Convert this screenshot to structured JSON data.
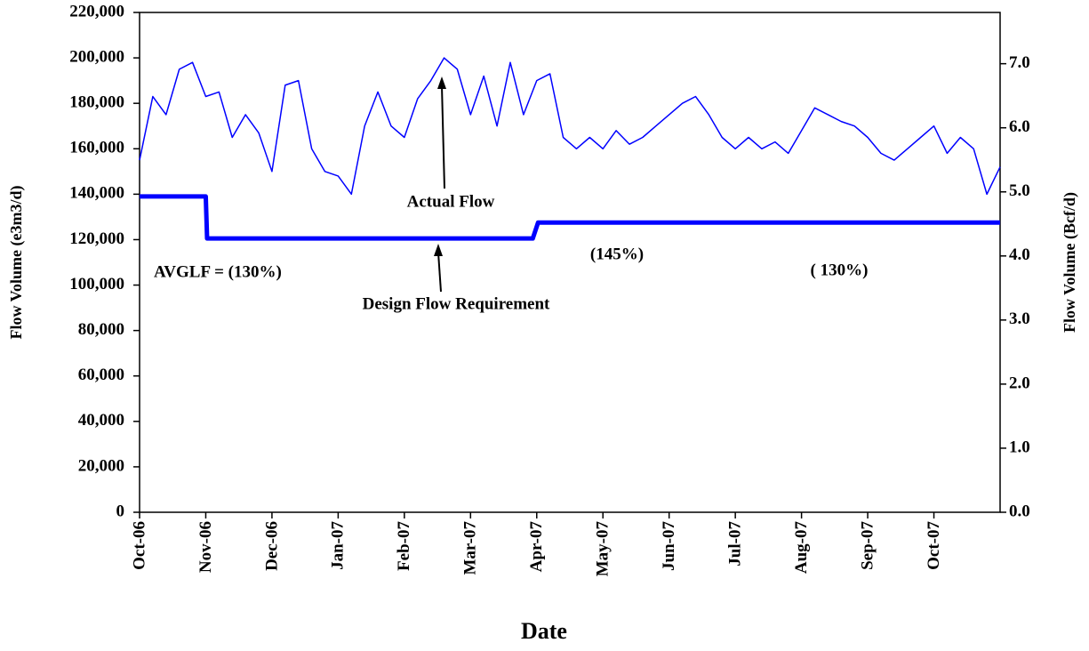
{
  "chart_data": {
    "type": "line",
    "xlabel": "Date",
    "ylabel": "Flow Volume  (e3m3/d)",
    "y2label": "Flow Volume  (Bcf/d)",
    "xlim": [
      0,
      13
    ],
    "xticks": [
      {
        "value": 0,
        "label": "Oct-06"
      },
      {
        "value": 1,
        "label": "Nov-06"
      },
      {
        "value": 2,
        "label": "Dec-06"
      },
      {
        "value": 3,
        "label": "Jan-07"
      },
      {
        "value": 4,
        "label": "Feb-07"
      },
      {
        "value": 5,
        "label": "Mar-07"
      },
      {
        "value": 6,
        "label": "Apr-07"
      },
      {
        "value": 7,
        "label": "May-07"
      },
      {
        "value": 8,
        "label": "Jun-07"
      },
      {
        "value": 9,
        "label": "Jul-07"
      },
      {
        "value": 10,
        "label": "Aug-07"
      },
      {
        "value": 11,
        "label": "Sep-07"
      },
      {
        "value": 12,
        "label": "Oct-07"
      }
    ],
    "ylim": [
      0,
      220000
    ],
    "yticks": [
      0,
      {
        "value": 20000,
        "label": "20,000"
      },
      {
        "value": 40000,
        "label": "40,000"
      },
      {
        "value": 60000,
        "label": "60,000"
      },
      {
        "value": 80000,
        "label": "80,000"
      },
      {
        "value": 100000,
        "label": "100,000"
      },
      {
        "value": 120000,
        "label": "120,000"
      },
      {
        "value": 140000,
        "label": "140,000"
      },
      {
        "value": 160000,
        "label": "160,000"
      },
      {
        "value": 180000,
        "label": "180,000"
      },
      {
        "value": 200000,
        "label": "200,000"
      },
      {
        "value": 220000,
        "label": "220,000"
      }
    ],
    "y2lim": [
      0,
      7.8
    ],
    "y2ticks": [
      {
        "value": 0,
        "label": "0.0"
      },
      {
        "value": 1,
        "label": "1.0"
      },
      {
        "value": 2,
        "label": "2.0"
      },
      {
        "value": 3,
        "label": "3.0"
      },
      {
        "value": 4,
        "label": "4.0"
      },
      {
        "value": 5,
        "label": "5.0"
      },
      {
        "value": 6,
        "label": "6.0"
      },
      {
        "value": 7,
        "label": "7.0"
      }
    ],
    "annotations": [
      "Actual Flow",
      "Design Flow Requirement",
      "AVGLF = (130%)",
      "(145%)",
      "( 130%)"
    ],
    "series": [
      {
        "color": "#0000ff",
        "width": 1.5,
        "x": [
          0,
          0.2,
          0.4,
          0.6,
          0.8,
          1.0,
          1.2,
          1.4,
          1.6,
          1.8,
          2.0,
          2.2,
          2.4,
          2.6,
          2.8,
          3.0,
          3.2,
          3.4,
          3.6,
          3.8,
          4.0,
          4.2,
          4.4,
          4.6,
          4.8,
          5.0,
          5.2,
          5.4,
          5.6,
          5.8,
          6.0,
          6.2,
          6.4,
          6.6,
          6.8,
          7.0,
          7.2,
          7.4,
          7.6,
          7.8,
          8.0,
          8.2,
          8.4,
          8.6,
          8.8,
          9.0,
          9.2,
          9.4,
          9.6,
          9.8,
          10.0,
          10.2,
          10.4,
          10.6,
          10.8,
          11.0,
          11.2,
          11.4,
          11.6,
          11.8,
          12.0,
          12.2,
          12.4,
          12.6,
          12.8,
          13.0
        ],
        "values": [
          155000,
          183000,
          175000,
          195000,
          198000,
          183000,
          185000,
          165000,
          175000,
          167000,
          150000,
          188000,
          190000,
          160000,
          150000,
          148000,
          140000,
          170000,
          185000,
          170000,
          165000,
          182000,
          190000,
          200000,
          195000,
          175000,
          192000,
          170000,
          198000,
          175000,
          190000,
          193000,
          165000,
          160000,
          165000,
          160000,
          168000,
          162000,
          165000,
          170000,
          175000,
          180000,
          183000,
          175000,
          165000,
          160000,
          165000,
          160000,
          163000,
          158000,
          168000,
          178000,
          175000,
          172000,
          170000,
          165000,
          158000,
          155000,
          160000,
          165000,
          170000,
          158000,
          165000,
          160000,
          140000,
          152000
        ]
      },
      {
        "color": "#0000ff",
        "width": 5,
        "x": [
          0,
          1.0,
          1.02,
          5.94,
          6.02,
          13
        ],
        "values": [
          139000,
          139000,
          120500,
          120500,
          127500,
          127500
        ]
      }
    ]
  }
}
